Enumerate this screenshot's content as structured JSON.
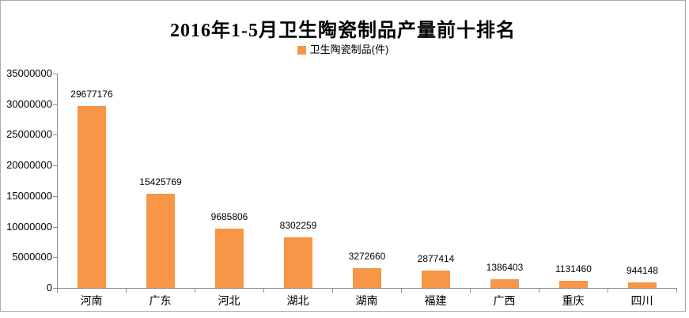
{
  "chart_data": {
    "type": "bar",
    "title": "2016年1-5月卫生陶瓷制品产量前十排名",
    "legend": "卫生陶瓷制品(件)",
    "legend_position": "top",
    "categories": [
      "河南",
      "广东",
      "河北",
      "湖北",
      "湖南",
      "福建",
      "广西",
      "重庆",
      "四川"
    ],
    "values": [
      29677176,
      15425769,
      9685806,
      8302259,
      3272660,
      2877414,
      1386403,
      1131460,
      944148
    ],
    "value_labels": [
      "29677176",
      "15425769",
      "9685806",
      "8302259",
      "3272660",
      "2877414",
      "1386403",
      "1131460",
      "944148"
    ],
    "xlabel": "",
    "ylabel": "",
    "ylim": [
      0,
      35000000
    ],
    "ytick_step": 5000000,
    "ytick_labels": [
      "0",
      "5000000",
      "10000000",
      "15000000",
      "20000000",
      "25000000",
      "30000000",
      "35000000"
    ],
    "grid": false,
    "bar_color": "#F79646"
  }
}
